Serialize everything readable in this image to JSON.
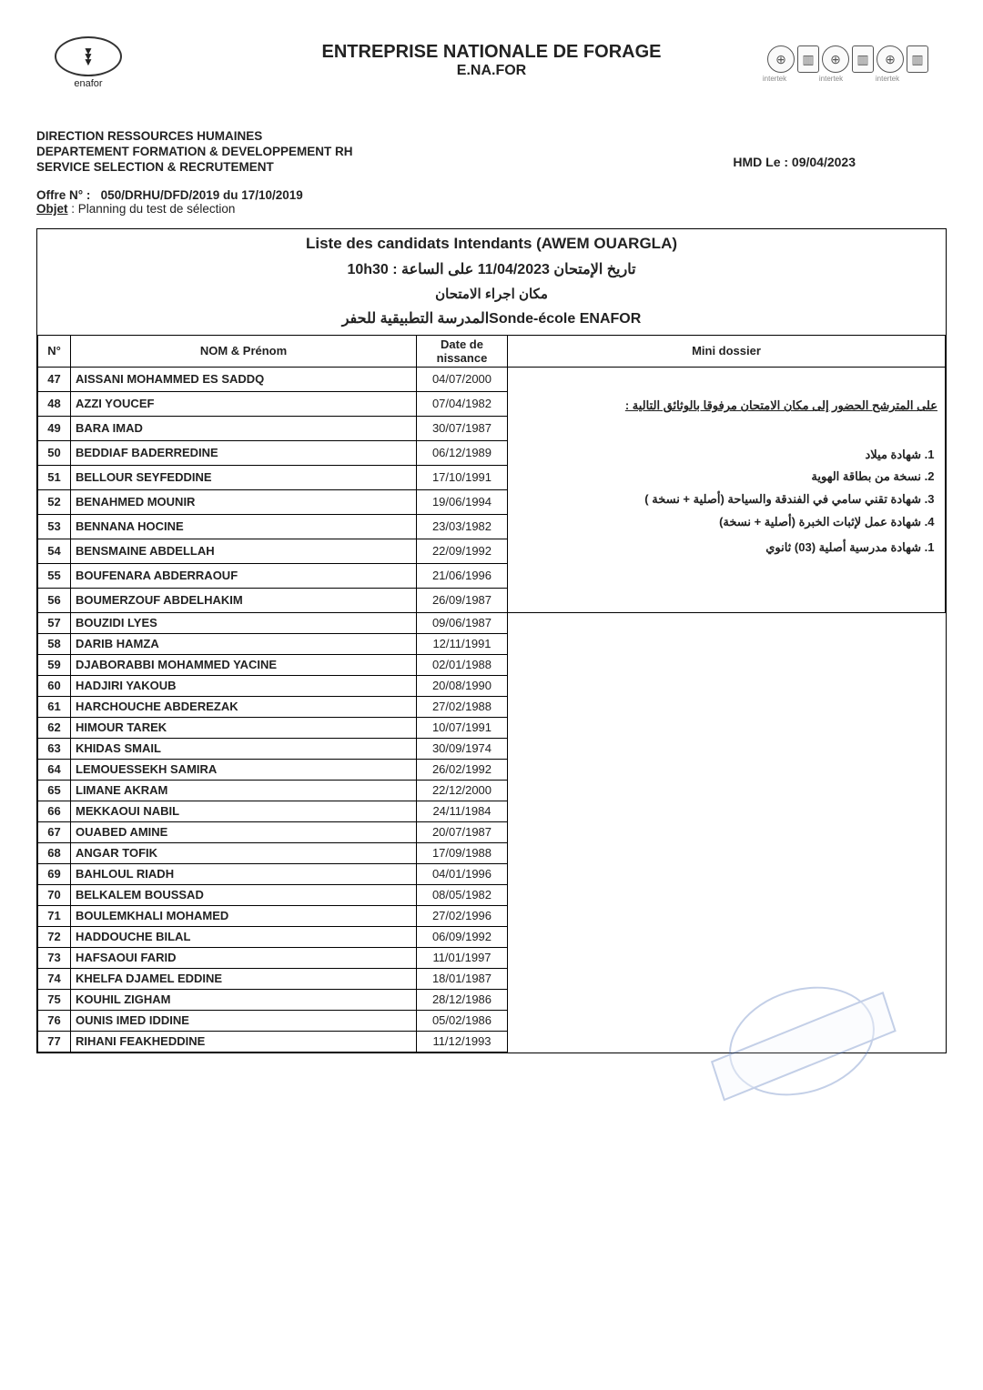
{
  "header": {
    "logo_label": "enafor",
    "company_line1": "ENTREPRISE NATIONALE DE FORAGE",
    "company_line2": "E.NA.FOR",
    "badge_sub": "intertek",
    "dept_line1": "DIRECTION RESSOURCES HUMAINES",
    "dept_line2": "DEPARTEMENT FORMATION & DEVELOPPEMENT RH",
    "dept_line3": "SERVICE SELECTION & RECRUTEMENT",
    "date_loc": "HMD Le : 09/04/2023",
    "offre_label": "Offre N° :",
    "offre_value": "050/DRHU/DFD/2019 du 17/10/2019",
    "objet_label": "Objet",
    "objet_value": ": Planning du test de sélection"
  },
  "frame": {
    "h1": "Liste des candidats Intendants   (AWEM OUARGLA)",
    "h2": "تاريخ الإمتحان 11/04/2023  على الساعة : 10h30",
    "h3": "مكان اجراء الامتحان",
    "h4_a": "المدرسة التطبيقية للحفر",
    "h4_b": "Sonde-école ENAFOR"
  },
  "columns": {
    "num": "N°",
    "name": "NOM & Prénom",
    "dob": "Date de nissance",
    "dossier": "Mini dossier"
  },
  "dossier": {
    "intro": "على المترشح الحضور إلى مكان الامتحان مرفوقا بالوثائق التالية :",
    "items1": [
      "شهادة ميلاد",
      "نسخة من بطاقة الهوية",
      "شهادة تقني سامي في الفندقة والسياحة  (أصلية + نسخة )",
      "شهادة عمل لإثبات الخبرة (أصلية + نسخة)"
    ],
    "items2": [
      "شهادة مدرسية أصلية (03) ثانوي"
    ]
  },
  "rows_tall": [
    {
      "n": "47",
      "name": "AISSANI MOHAMMED ES SADDQ",
      "dob": "04/07/2000"
    },
    {
      "n": "48",
      "name": "AZZI YOUCEF",
      "dob": "07/04/1982"
    },
    {
      "n": "49",
      "name": "BARA IMAD",
      "dob": "30/07/1987"
    },
    {
      "n": "50",
      "name": "BEDDIAF BADERREDINE",
      "dob": "06/12/1989"
    },
    {
      "n": "51",
      "name": "BELLOUR SEYFEDDINE",
      "dob": "17/10/1991"
    },
    {
      "n": "52",
      "name": "BENAHMED MOUNIR",
      "dob": "19/06/1994"
    },
    {
      "n": "53",
      "name": "BENNANA HOCINE",
      "dob": "23/03/1982"
    },
    {
      "n": "54",
      "name": "BENSMAINE ABDELLAH",
      "dob": "22/09/1992"
    },
    {
      "n": "55",
      "name": "BOUFENARA ABDERRAOUF",
      "dob": "21/06/1996"
    },
    {
      "n": "56",
      "name": "BOUMERZOUF ABDELHAKIM",
      "dob": "26/09/1987"
    }
  ],
  "rows_short": [
    {
      "n": "57",
      "name": "BOUZIDI LYES",
      "dob": "09/06/1987"
    },
    {
      "n": "58",
      "name": "DARIB HAMZA",
      "dob": "12/11/1991"
    },
    {
      "n": "59",
      "name": "DJABORABBI MOHAMMED YACINE",
      "dob": "02/01/1988"
    },
    {
      "n": "60",
      "name": "HADJIRI YAKOUB",
      "dob": "20/08/1990"
    },
    {
      "n": "61",
      "name": "HARCHOUCHE ABDEREZAK",
      "dob": "27/02/1988"
    },
    {
      "n": "62",
      "name": "HIMOUR TAREK",
      "dob": "10/07/1991"
    },
    {
      "n": "63",
      "name": "KHIDAS SMAIL",
      "dob": "30/09/1974"
    },
    {
      "n": "64",
      "name": "LEMOUESSEKH SAMIRA",
      "dob": "26/02/1992"
    },
    {
      "n": "65",
      "name": "LIMANE AKRAM",
      "dob": "22/12/2000"
    },
    {
      "n": "66",
      "name": "MEKKAOUI NABIL",
      "dob": "24/11/1984"
    },
    {
      "n": "67",
      "name": "OUABED AMINE",
      "dob": "20/07/1987"
    },
    {
      "n": "68",
      "name": "ANGAR TOFIK",
      "dob": "17/09/1988"
    },
    {
      "n": "69",
      "name": "BAHLOUL RIADH",
      "dob": "04/01/1996"
    },
    {
      "n": "70",
      "name": "BELKALEM BOUSSAD",
      "dob": "08/05/1982"
    },
    {
      "n": "71",
      "name": "BOULEMKHALI MOHAMED",
      "dob": "27/02/1996"
    },
    {
      "n": "72",
      "name": "HADDOUCHE BILAL",
      "dob": "06/09/1992"
    },
    {
      "n": "73",
      "name": "HAFSAOUI FARID",
      "dob": "11/01/1997"
    },
    {
      "n": "74",
      "name": "KHELFA DJAMEL EDDINE",
      "dob": "18/01/1987"
    },
    {
      "n": "75",
      "name": "KOUHIL ZIGHAM",
      "dob": "28/12/1986"
    },
    {
      "n": "76",
      "name": "OUNIS IMED IDDINE",
      "dob": "05/02/1986"
    },
    {
      "n": "77",
      "name": "RIHANI FEAKHEDDINE",
      "dob": "11/12/1993"
    }
  ]
}
